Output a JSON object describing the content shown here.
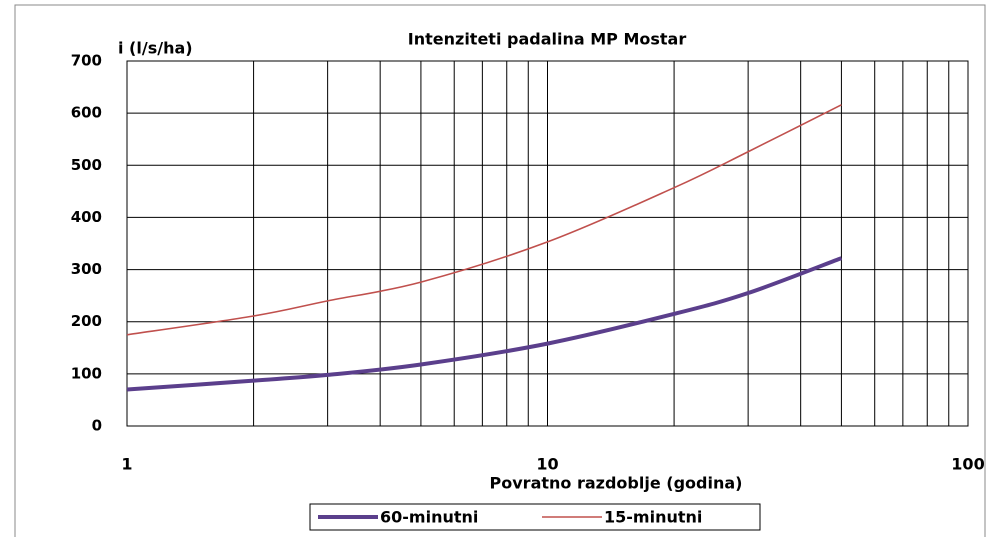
{
  "chart_data": {
    "type": "line",
    "title": "Intenziteti padalina MP Mostar",
    "y_label": "i (l/s/ha)",
    "x_label": "Povratno razdoblje (godina)",
    "x": [
      1,
      2,
      3,
      5,
      10,
      20,
      30,
      50
    ],
    "series": [
      {
        "name": "60-minutni",
        "color": "#5b3f8c",
        "values": [
          70,
          87,
          98,
          118,
          158,
          215,
          255,
          322
        ]
      },
      {
        "name": "15-minutni",
        "color": "#c0504d",
        "values": [
          175,
          211,
          240,
          276,
          353,
          457,
          526,
          616
        ]
      }
    ],
    "xlim": [
      1,
      100
    ],
    "xticks": [
      1,
      10,
      100
    ],
    "x_log": true,
    "ylim": [
      0,
      700
    ],
    "yticks": [
      0,
      100,
      200,
      300,
      400,
      500,
      600,
      700
    ],
    "grid": true,
    "legend": "bottom"
  }
}
